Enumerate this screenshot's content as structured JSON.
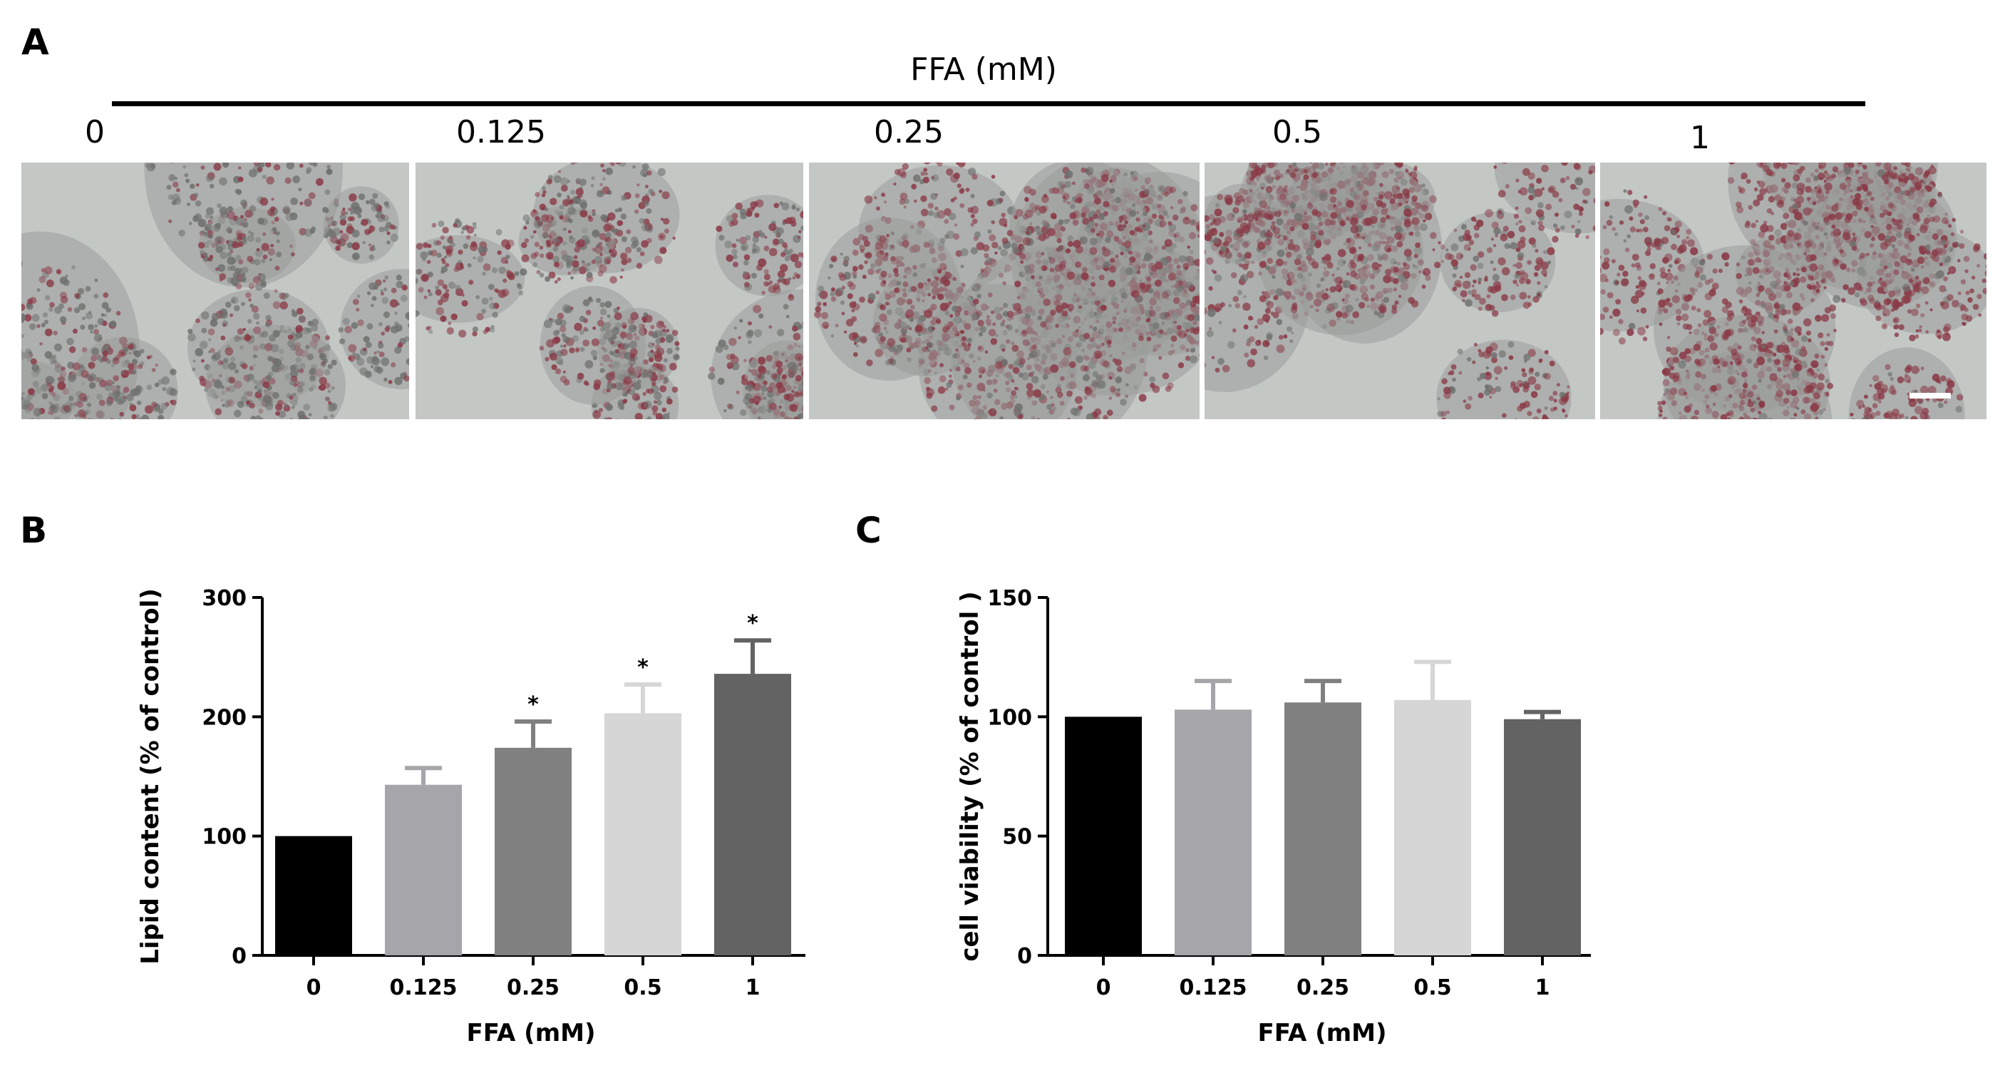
{
  "panels": {
    "a": "A",
    "b": "B",
    "c": "C"
  },
  "micrographs": {
    "group_title": "FFA (mM)",
    "labels": [
      "0",
      "0.125",
      "0.25",
      "0.5",
      "1"
    ],
    "stain_density": [
      0.35,
      0.55,
      0.7,
      0.78,
      0.9
    ],
    "colors": {
      "background": "#c4c8c5",
      "stain": "#8a3a46",
      "cell": "#9a9c9a"
    }
  },
  "chart_data": [
    {
      "type": "bar",
      "categories": [
        "0",
        "0.125",
        "0.25",
        "0.5",
        "1"
      ],
      "values": [
        100,
        143,
        174,
        203,
        236
      ],
      "errors": [
        0,
        14,
        22,
        24,
        28
      ],
      "significance": [
        "",
        "",
        "*",
        "*",
        "*"
      ],
      "colors": [
        "#000000",
        "#a5a5aa",
        "#808080",
        "#d6d6d6",
        "#636363"
      ],
      "title": "",
      "xlabel": "FFA (mM)",
      "ylabel": "Lipid content (% of control)",
      "ylim": [
        0,
        300
      ],
      "yticks": [
        "0",
        "100",
        "200",
        "300"
      ],
      "grid": false
    },
    {
      "type": "bar",
      "categories": [
        "0",
        "0.125",
        "0.25",
        "0.5",
        "1"
      ],
      "values": [
        100,
        103,
        106,
        107,
        99
      ],
      "errors": [
        0,
        12,
        9,
        16,
        3
      ],
      "significance": [
        "",
        "",
        "",
        "",
        ""
      ],
      "colors": [
        "#000000",
        "#a5a5aa",
        "#808080",
        "#d6d6d6",
        "#636363"
      ],
      "title": "",
      "xlabel": "FFA (mM)",
      "ylabel": "cell viability (% of control )",
      "ylim": [
        0,
        150
      ],
      "yticks": [
        "0",
        "50",
        "100",
        "150"
      ],
      "grid": false
    }
  ]
}
